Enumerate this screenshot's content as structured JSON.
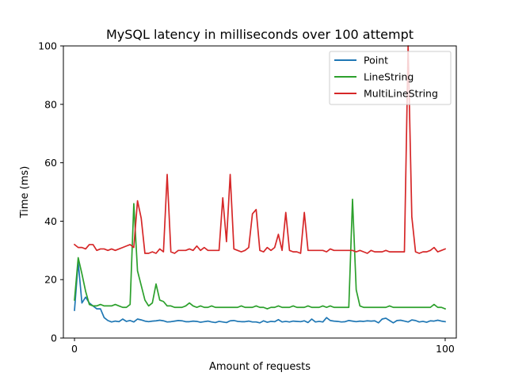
{
  "chart_data": {
    "type": "line",
    "title": "MySQL latency in milliseconds over 100 attempt",
    "xlabel": "Amount of requests",
    "ylabel": "Time (ms)",
    "xlim": [
      -3,
      103
    ],
    "ylim": [
      0,
      100
    ],
    "xticks": [
      0,
      100
    ],
    "yticks": [
      0,
      20,
      40,
      60,
      80,
      100
    ],
    "grid": false,
    "legend_position": "top-right",
    "series": [
      {
        "name": "Point",
        "color": "#1f77b4",
        "values": [
          9.5,
          26.0,
          12.0,
          14.0,
          12.0,
          11.0,
          10.0,
          10.0,
          7.0,
          6.0,
          5.5,
          5.8,
          5.6,
          6.5,
          5.7,
          6.0,
          5.5,
          6.5,
          6.2,
          5.8,
          5.6,
          5.8,
          5.9,
          6.1,
          5.9,
          5.5,
          5.6,
          5.8,
          6.0,
          5.9,
          5.6,
          5.6,
          5.8,
          5.7,
          5.4,
          5.6,
          5.8,
          5.5,
          5.3,
          5.7,
          5.5,
          5.3,
          5.9,
          6.0,
          5.7,
          5.6,
          5.6,
          5.8,
          5.5,
          5.5,
          5.2,
          5.9,
          5.4,
          5.7,
          5.6,
          6.3,
          5.5,
          5.7,
          5.5,
          5.8,
          5.7,
          5.6,
          5.9,
          5.3,
          6.5,
          5.5,
          5.7,
          5.5,
          7.0,
          6.0,
          5.8,
          5.7,
          5.5,
          5.6,
          6.0,
          5.8,
          5.6,
          5.8,
          5.7,
          5.9,
          5.8,
          5.9,
          5.2,
          6.5,
          6.8,
          6.0,
          5.2,
          6.0,
          6.1,
          5.8,
          5.5,
          6.2,
          6.0,
          5.5,
          5.7,
          5.4,
          5.9,
          5.8,
          6.1,
          5.8,
          5.6
        ]
      },
      {
        "name": "LineString",
        "color": "#2ca02c",
        "values": [
          13.0,
          27.5,
          22.0,
          16.0,
          11.5,
          11.0,
          11.0,
          11.5,
          11.0,
          11.0,
          11.0,
          11.5,
          11.0,
          10.5,
          10.5,
          11.5,
          46.0,
          23.0,
          18.0,
          13.0,
          11.0,
          12.0,
          18.5,
          13.0,
          12.5,
          11.0,
          11.0,
          10.5,
          10.5,
          10.5,
          11.0,
          12.0,
          11.0,
          10.5,
          11.0,
          10.5,
          10.5,
          11.0,
          10.5,
          10.5,
          10.5,
          10.5,
          10.5,
          10.5,
          10.5,
          11.0,
          10.5,
          10.5,
          10.5,
          11.0,
          10.5,
          10.5,
          10.0,
          10.5,
          10.5,
          11.0,
          10.5,
          10.5,
          10.5,
          11.0,
          10.5,
          10.5,
          10.5,
          11.0,
          10.5,
          10.5,
          10.5,
          11.0,
          10.5,
          11.0,
          10.5,
          10.5,
          10.5,
          10.5,
          10.5,
          47.5,
          16.5,
          11.0,
          10.5,
          10.5,
          10.5,
          10.5,
          10.5,
          10.5,
          10.5,
          11.0,
          10.5,
          10.5,
          10.5,
          10.5,
          10.5,
          10.5,
          10.5,
          10.5,
          10.5,
          10.5,
          10.5,
          11.5,
          10.5,
          10.5,
          10.0
        ]
      },
      {
        "name": "MultiLineString",
        "color": "#d62728",
        "values": [
          32.0,
          31.0,
          31.0,
          30.5,
          32.0,
          32.0,
          30.0,
          30.5,
          30.5,
          30.0,
          30.5,
          30.0,
          30.5,
          31.0,
          31.5,
          32.0,
          31.0,
          47.0,
          41.0,
          29.0,
          29.0,
          29.5,
          29.0,
          30.5,
          29.5,
          56.0,
          29.5,
          29.0,
          30.0,
          30.0,
          30.0,
          30.5,
          30.0,
          31.5,
          30.0,
          31.0,
          30.0,
          30.0,
          30.0,
          30.0,
          48.0,
          33.0,
          56.0,
          30.5,
          30.0,
          29.5,
          30.0,
          31.0,
          42.5,
          44.0,
          30.0,
          29.5,
          31.0,
          30.0,
          31.0,
          35.5,
          30.0,
          43.0,
          30.0,
          29.5,
          29.5,
          29.0,
          43.0,
          30.0,
          30.0,
          30.0,
          30.0,
          30.0,
          29.5,
          30.5,
          30.0,
          30.0,
          30.0,
          30.0,
          30.0,
          30.0,
          29.5,
          30.0,
          29.5,
          29.0,
          30.0,
          29.5,
          29.5,
          29.5,
          30.0,
          29.5,
          29.5,
          29.5,
          29.5,
          29.5,
          100,
          41.5,
          29.5,
          29.0,
          29.5,
          29.5,
          30.0,
          31.0,
          29.5,
          30.0,
          30.5
        ]
      }
    ]
  }
}
